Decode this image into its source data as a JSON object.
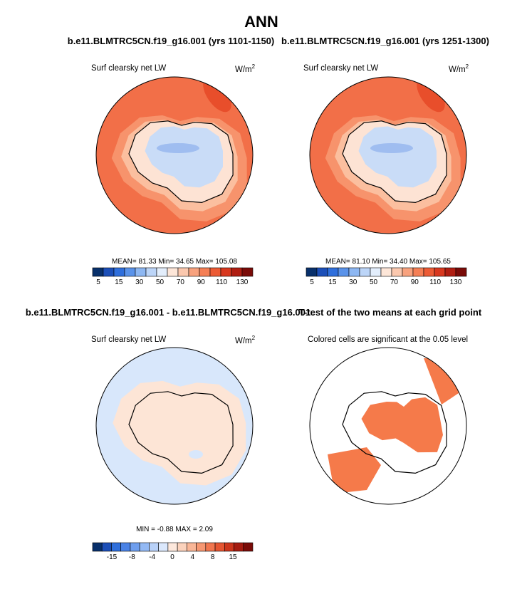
{
  "title": "ANN",
  "panels": [
    {
      "title": "b.e11.BLMTRC5CN.f19_g16.001 (yrs 1101-1150)",
      "subtitle": "Surf clearsky net LW",
      "units": "W/m",
      "units_exp": "2",
      "stats": "MEAN=  81.33  Min=  34.65  Max=  105.08",
      "colorbar_labels": [
        "5",
        "15",
        "30",
        "50",
        "70",
        "90",
        "110",
        "130"
      ]
    },
    {
      "title": "b.e11.BLMTRC5CN.f19_g16.001 (yrs 1251-1300)",
      "subtitle": "Surf clearsky net LW",
      "units": "W/m",
      "units_exp": "2",
      "stats": "MEAN=  81.10  Min=  34.40  Max=  105.65",
      "colorbar_labels": [
        "5",
        "15",
        "30",
        "50",
        "70",
        "90",
        "110",
        "130"
      ]
    },
    {
      "title": "b.e11.BLMTRC5CN.f19_g16.001 - b.e11.BLMTRC5CN.f19_g16.001",
      "subtitle": "Surf clearsky net LW",
      "units": "W/m",
      "units_exp": "2",
      "stats": "MIN =  -0.88  MAX =   2.09",
      "colorbar_labels": [
        "-15",
        "-8",
        "-4",
        "0",
        "4",
        "8",
        "15"
      ]
    },
    {
      "title": "T-test of the two means at each grid point",
      "subtitle": "Colored cells are significant at the 0.05 level"
    }
  ]
}
